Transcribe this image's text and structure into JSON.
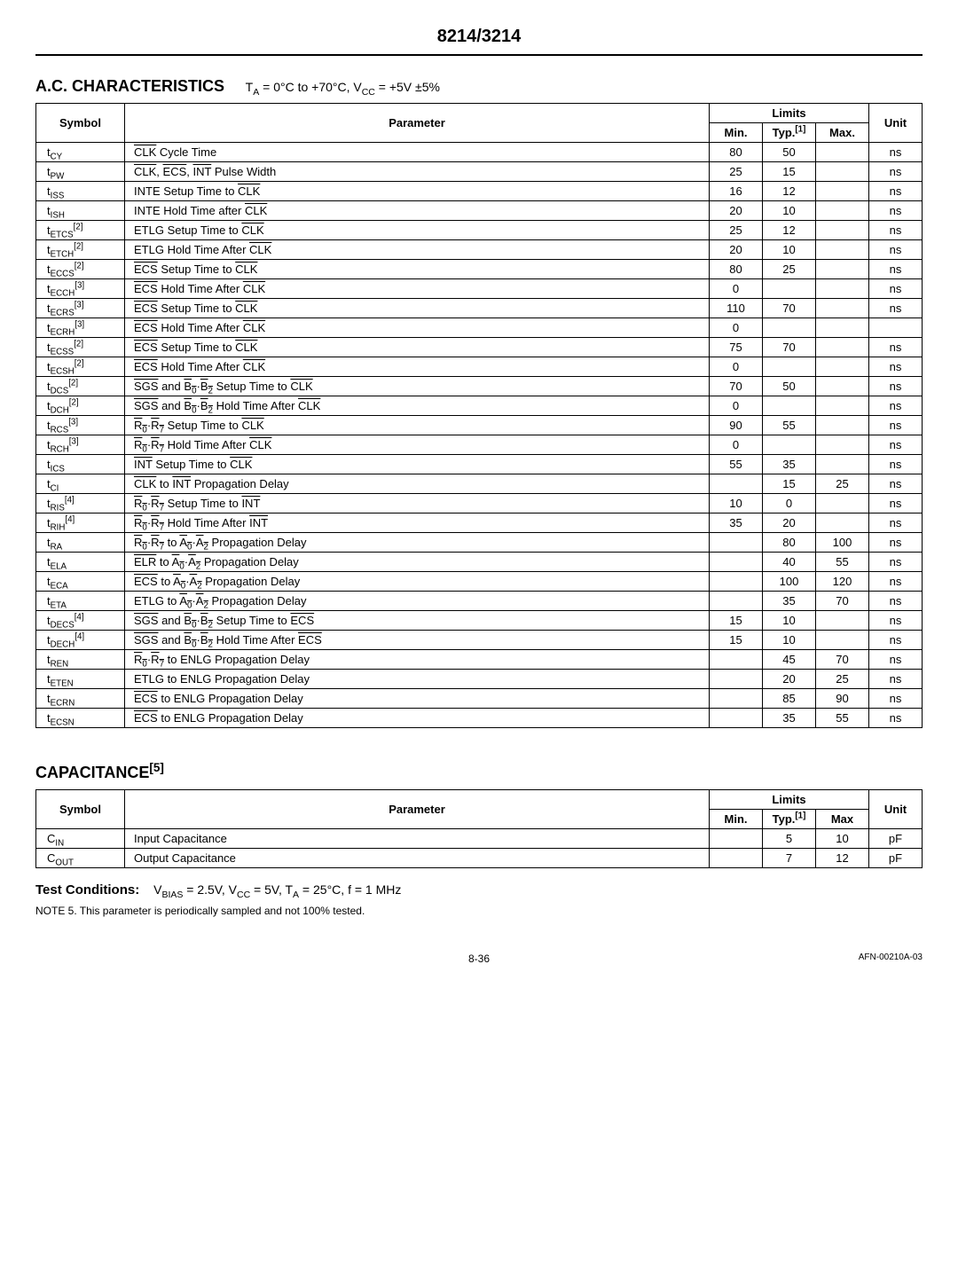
{
  "part_number": "8214/3214",
  "ac_section": {
    "title": "A.C. CHARACTERISTICS",
    "conditions_html": "T<sub>A</sub> = 0°C to +70°C, V<sub>CC</sub> = +5V ±5%",
    "limits_header": "Limits",
    "headers": [
      "Symbol",
      "Parameter",
      "Min.",
      "Typ.[1]",
      "Max.",
      "Unit"
    ],
    "rows": [
      {
        "symbol_html": "t<sub>CY</sub>",
        "parameter_html": "<span class='overbar'>CLK</span> Cycle Time",
        "min": "80",
        "typ": "50",
        "max": "",
        "unit": "ns"
      },
      {
        "symbol_html": "t<sub>PW</sub>",
        "parameter_html": "<span class='overbar'>CLK</span>, <span class='overbar'>ECS</span>, <span class='overbar'>INT</span> Pulse Width",
        "min": "25",
        "typ": "15",
        "max": "",
        "unit": "ns"
      },
      {
        "symbol_html": "t<sub>ISS</sub>",
        "parameter_html": "INTE Setup Time to <span class='overbar'>CLK</span>",
        "min": "16",
        "typ": "12",
        "max": "",
        "unit": "ns"
      },
      {
        "symbol_html": "t<sub>ISH</sub>",
        "parameter_html": "INTE Hold Time after <span class='overbar'>CLK</span>",
        "min": "20",
        "typ": "10",
        "max": "",
        "unit": "ns"
      },
      {
        "symbol_html": "t<sub>ETCS</sub><sup>[2]</sup>",
        "parameter_html": "ETLG Setup Time to <span class='overbar'>CLK</span>",
        "min": "25",
        "typ": "12",
        "max": "",
        "unit": "ns"
      },
      {
        "symbol_html": "t<sub>ETCH</sub><sup>[2]</sup>",
        "parameter_html": "ETLG Hold Time After <span class='overbar'>CLK</span>",
        "min": "20",
        "typ": "10",
        "max": "",
        "unit": "ns"
      },
      {
        "symbol_html": "t<sub>ECCS</sub><sup>[2]</sup>",
        "parameter_html": "<span class='overbar'>ECS</span> Setup Time to <span class='overbar'>CLK</span>",
        "min": "80",
        "typ": "25",
        "max": "",
        "unit": "ns"
      },
      {
        "symbol_html": "t<sub>ECCH</sub><sup>[3]</sup>",
        "parameter_html": "<span class='overbar'>ECS</span> Hold Time After <span class='overbar'>CLK</span>",
        "min": "0",
        "typ": "",
        "max": "",
        "unit": "ns"
      },
      {
        "symbol_html": "t<sub>ECRS</sub><sup>[3]</sup>",
        "parameter_html": "<span class='overbar'>ECS</span> Setup Time to <span class='overbar'>CLK</span>",
        "min": "110",
        "typ": "70",
        "max": "",
        "unit": "ns"
      },
      {
        "symbol_html": "t<sub>ECRH</sub><sup>[3]</sup>",
        "parameter_html": "<span class='overbar'>ECS</span> Hold Time After <span class='overbar'>CLK</span>",
        "min": "0",
        "typ": "",
        "max": "",
        "unit": ""
      },
      {
        "symbol_html": "t<sub>ECSS</sub><sup>[2]</sup>",
        "parameter_html": "<span class='overbar'>ECS</span> Setup Time to <span class='overbar'>CLK</span>",
        "min": "75",
        "typ": "70",
        "max": "",
        "unit": "ns"
      },
      {
        "symbol_html": "t<sub>ECSH</sub><sup>[2]</sup>",
        "parameter_html": "<span class='overbar'>ECS</span> Hold Time After <span class='overbar'>CLK</span>",
        "min": "0",
        "typ": "",
        "max": "",
        "unit": "ns"
      },
      {
        "symbol_html": "t<sub>DCS</sub><sup>[2]</sup>",
        "parameter_html": "<span class='overbar'>SGS</span> and <span class='overbar'>B<sub>0</sub></span>·<span class='overbar'>B<sub>2</sub></span> Setup Time to <span class='overbar'>CLK</span>",
        "min": "70",
        "typ": "50",
        "max": "",
        "unit": "ns"
      },
      {
        "symbol_html": "t<sub>DCH</sub><sup>[2]</sup>",
        "parameter_html": "<span class='overbar'>SGS</span> and <span class='overbar'>B<sub>0</sub></span>·<span class='overbar'>B<sub>2</sub></span> Hold Time After <span class='overbar'>CLK</span>",
        "min": "0",
        "typ": "",
        "max": "",
        "unit": "ns"
      },
      {
        "symbol_html": "t<sub>RCS</sub><sup>[3]</sup>",
        "parameter_html": "<span class='overbar'>R<sub>0</sub></span>·<span class='overbar'>R<sub>7</sub></span> Setup Time to <span class='overbar'>CLK</span>",
        "min": "90",
        "typ": "55",
        "max": "",
        "unit": "ns"
      },
      {
        "symbol_html": "t<sub>RCH</sub><sup>[3]</sup>",
        "parameter_html": "<span class='overbar'>R<sub>0</sub></span>·<span class='overbar'>R<sub>7</sub></span> Hold Time After <span class='overbar'>CLK</span>",
        "min": "0",
        "typ": "",
        "max": "",
        "unit": "ns"
      },
      {
        "symbol_html": "t<sub>ICS</sub>",
        "parameter_html": "<span class='overbar'>INT</span> Setup Time to <span class='overbar'>CLK</span>",
        "min": "55",
        "typ": "35",
        "max": "",
        "unit": "ns"
      },
      {
        "symbol_html": "t<sub>CI</sub>",
        "parameter_html": "<span class='overbar'>CLK</span> to <span class='overbar'>INT</span> Propagation Delay",
        "min": "",
        "typ": "15",
        "max": "25",
        "unit": "ns"
      },
      {
        "symbol_html": "t<sub>RIS</sub><sup>[4]</sup>",
        "parameter_html": "<span class='overbar'>R<sub>0</sub></span>·<span class='overbar'>R<sub>7</sub></span> Setup Time to <span class='overbar'>INT</span>",
        "min": "10",
        "typ": "0",
        "max": "",
        "unit": "ns"
      },
      {
        "symbol_html": "t<sub>RIH</sub><sup>[4]</sup>",
        "parameter_html": "<span class='overbar'>R<sub>0</sub></span>·<span class='overbar'>R<sub>7</sub></span> Hold Time After <span class='overbar'>INT</span>",
        "min": "35",
        "typ": "20",
        "max": "",
        "unit": "ns"
      },
      {
        "symbol_html": "t<sub>RA</sub>",
        "parameter_html": "<span class='overbar'>R<sub>0</sub></span>·<span class='overbar'>R<sub>7</sub></span> to <span class='overbar'>A<sub>0</sub></span>·<span class='overbar'>A<sub>2</sub></span> Propagation Delay",
        "min": "",
        "typ": "80",
        "max": "100",
        "unit": "ns"
      },
      {
        "symbol_html": "t<sub>ELA</sub>",
        "parameter_html": "<span class='overbar'>ELR</span> to <span class='overbar'>A<sub>0</sub></span>·<span class='overbar'>A<sub>2</sub></span> Propagation Delay",
        "min": "",
        "typ": "40",
        "max": "55",
        "unit": "ns"
      },
      {
        "symbol_html": "t<sub>ECA</sub>",
        "parameter_html": "<span class='overbar'>ECS</span> to <span class='overbar'>A<sub>0</sub></span>·<span class='overbar'>A<sub>2</sub></span> Propagation Delay",
        "min": "",
        "typ": "100",
        "max": "120",
        "unit": "ns"
      },
      {
        "symbol_html": "t<sub>ETA</sub>",
        "parameter_html": "ETLG to <span class='overbar'>A<sub>0</sub></span>·<span class='overbar'>A<sub>2</sub></span> Propagation Delay",
        "min": "",
        "typ": "35",
        "max": "70",
        "unit": "ns"
      },
      {
        "symbol_html": "t<sub>DECS</sub><sup>[4]</sup>",
        "parameter_html": "<span class='overbar'>SGS</span> and <span class='overbar'>B<sub>0</sub></span>·<span class='overbar'>B<sub>2</sub></span> Setup Time to <span class='overbar'>ECS</span>",
        "min": "15",
        "typ": "10",
        "max": "",
        "unit": "ns"
      },
      {
        "symbol_html": "t<sub>DECH</sub><sup>[4]</sup>",
        "parameter_html": "<span class='overbar'>SGS</span> and <span class='overbar'>B<sub>0</sub></span>·<span class='overbar'>B<sub>2</sub></span> Hold Time After <span class='overbar'>ECS</span>",
        "min": "15",
        "typ": "10",
        "max": "",
        "unit": "ns"
      },
      {
        "symbol_html": "t<sub>REN</sub>",
        "parameter_html": "<span class='overbar'>R<sub>0</sub></span>·<span class='overbar'>R<sub>7</sub></span> to ENLG Propagation Delay",
        "min": "",
        "typ": "45",
        "max": "70",
        "unit": "ns"
      },
      {
        "symbol_html": "t<sub>ETEN</sub>",
        "parameter_html": "ETLG to ENLG Propagation Delay",
        "min": "",
        "typ": "20",
        "max": "25",
        "unit": "ns"
      },
      {
        "symbol_html": "t<sub>ECRN</sub>",
        "parameter_html": "<span class='overbar'>ECS</span> to ENLG Propagation Delay",
        "min": "",
        "typ": "85",
        "max": "90",
        "unit": "ns"
      },
      {
        "symbol_html": "t<sub>ECSN</sub>",
        "parameter_html": "<span class='overbar'>ECS</span> to ENLG Propagation Delay",
        "min": "",
        "typ": "35",
        "max": "55",
        "unit": "ns"
      }
    ]
  },
  "cap_section": {
    "title_html": "CAPACITANCE<sup>[5]</sup>",
    "limits_header": "Limits",
    "headers": [
      "Symbol",
      "Parameter",
      "Min.",
      "Typ.[1]",
      "Max",
      "Unit"
    ],
    "rows": [
      {
        "symbol_html": "C<sub>IN</sub>",
        "parameter": "Input Capacitance",
        "min": "",
        "typ": "5",
        "max": "10",
        "unit": "pF"
      },
      {
        "symbol_html": "C<sub>OUT</sub>",
        "parameter": "Output Capacitance",
        "min": "",
        "typ": "7",
        "max": "12",
        "unit": "pF"
      }
    ]
  },
  "test_conditions": {
    "label": "Test Conditions:",
    "text_html": "V<sub>BIAS</sub> = 2.5V, V<sub>CC</sub> = 5V, T<sub>A</sub> = 25°C, f = 1 MHz"
  },
  "note5": "NOTE 5. This parameter is periodically sampled and not 100% tested.",
  "footer": {
    "page": "8-36",
    "afn": "AFN-00210A-03"
  }
}
